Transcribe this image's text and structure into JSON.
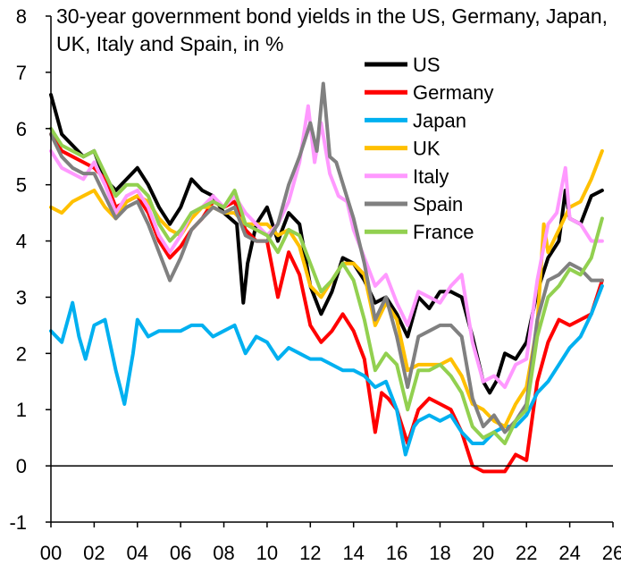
{
  "chart_data": {
    "type": "line",
    "title": "30-year government bond yields in the US, Germany, Japan, UK, Italy and Spain, in %",
    "xlabel": "",
    "ylabel": "",
    "xlim": [
      2000,
      2026
    ],
    "ylim": [
      -1,
      8
    ],
    "x_ticks": [
      0,
      2,
      4,
      6,
      8,
      10,
      12,
      14,
      16,
      18,
      20,
      22,
      24,
      26
    ],
    "x_tick_labels": [
      "00",
      "02",
      "04",
      "06",
      "08",
      "10",
      "12",
      "14",
      "16",
      "18",
      "20",
      "22",
      "24",
      "26"
    ],
    "y_ticks": [
      -1,
      0,
      1,
      2,
      3,
      4,
      5,
      6,
      7,
      8
    ],
    "grid": false,
    "legend_position": "top-right",
    "series": [
      {
        "name": "US",
        "color": "#000000",
        "x": [
          2000,
          2000.5,
          2001,
          2001.5,
          2002,
          2002.5,
          2003,
          2003.5,
          2004,
          2004.5,
          2005,
          2005.5,
          2006,
          2006.5,
          2007,
          2007.5,
          2008,
          2008.6,
          2008.9,
          2009.1,
          2009.5,
          2010,
          2010.5,
          2011,
          2011.5,
          2012,
          2012.5,
          2013,
          2013.5,
          2014,
          2014.5,
          2015,
          2015.5,
          2016,
          2016.5,
          2017,
          2017.5,
          2018,
          2018.5,
          2019,
          2019.5,
          2020,
          2020.3,
          2020.6,
          2021,
          2021.5,
          2022,
          2022.5,
          2023,
          2023.5,
          2023.8,
          2024,
          2024.5,
          2025,
          2025.5
        ],
        "y": [
          6.6,
          5.9,
          5.7,
          5.5,
          5.6,
          5.1,
          4.9,
          5.1,
          5.3,
          5.0,
          4.6,
          4.3,
          4.6,
          5.1,
          4.9,
          4.8,
          4.5,
          4.3,
          2.9,
          3.6,
          4.3,
          4.6,
          4.0,
          4.5,
          4.3,
          3.2,
          2.7,
          3.1,
          3.7,
          3.6,
          3.3,
          2.9,
          3.0,
          2.7,
          2.3,
          3.0,
          2.8,
          3.1,
          3.1,
          3.0,
          2.3,
          1.5,
          1.3,
          1.5,
          2.0,
          1.9,
          2.2,
          3.1,
          3.7,
          4.0,
          4.9,
          4.4,
          4.3,
          4.8,
          4.9
        ]
      },
      {
        "name": "Germany",
        "color": "#ff0000",
        "x": [
          2000,
          2000.5,
          2001,
          2001.5,
          2002,
          2002.5,
          2003,
          2003.5,
          2004,
          2004.5,
          2005,
          2005.5,
          2006,
          2006.5,
          2007,
          2007.5,
          2008,
          2008.5,
          2009,
          2009.5,
          2010,
          2010.5,
          2011,
          2011.5,
          2012,
          2012.5,
          2013,
          2013.5,
          2014,
          2014.5,
          2015,
          2015.3,
          2015.6,
          2016,
          2016.5,
          2017,
          2017.5,
          2018,
          2018.5,
          2019,
          2019.5,
          2020,
          2020.5,
          2021,
          2021.5,
          2022,
          2022.5,
          2023,
          2023.5,
          2024,
          2024.5,
          2025,
          2025.5
        ],
        "y": [
          5.9,
          5.6,
          5.5,
          5.4,
          5.3,
          5.1,
          4.6,
          4.7,
          4.8,
          4.5,
          4.0,
          3.7,
          3.9,
          4.2,
          4.4,
          4.7,
          4.6,
          4.7,
          4.2,
          4.0,
          4.0,
          3.0,
          3.8,
          3.4,
          2.5,
          2.2,
          2.4,
          2.7,
          2.4,
          1.9,
          0.6,
          1.3,
          1.2,
          1.0,
          0.4,
          1.0,
          1.2,
          1.1,
          1.0,
          0.6,
          0.0,
          -0.1,
          -0.1,
          -0.1,
          0.2,
          0.1,
          1.5,
          2.2,
          2.6,
          2.5,
          2.6,
          2.7,
          3.3
        ]
      },
      {
        "name": "Japan",
        "color": "#00b0f0",
        "x": [
          2000,
          2000.5,
          2001,
          2001.3,
          2001.6,
          2002,
          2002.5,
          2003,
          2003.4,
          2003.8,
          2004,
          2004.5,
          2005,
          2005.5,
          2006,
          2006.5,
          2007,
          2007.5,
          2008,
          2008.5,
          2009,
          2009.5,
          2010,
          2010.5,
          2011,
          2011.5,
          2012,
          2012.5,
          2013,
          2013.5,
          2014,
          2014.5,
          2015,
          2015.5,
          2016,
          2016.4,
          2016.8,
          2017,
          2017.5,
          2018,
          2018.5,
          2019,
          2019.5,
          2020,
          2020.5,
          2021,
          2021.5,
          2022,
          2022.5,
          2023,
          2023.5,
          2024,
          2024.5,
          2025,
          2025.5
        ],
        "y": [
          2.4,
          2.2,
          2.9,
          2.3,
          1.9,
          2.5,
          2.6,
          1.7,
          1.1,
          2.0,
          2.6,
          2.3,
          2.4,
          2.4,
          2.4,
          2.5,
          2.5,
          2.3,
          2.4,
          2.5,
          2.0,
          2.3,
          2.2,
          1.9,
          2.1,
          2.0,
          1.9,
          1.9,
          1.8,
          1.7,
          1.7,
          1.6,
          1.4,
          1.5,
          1.0,
          0.2,
          0.7,
          0.8,
          0.9,
          0.8,
          0.9,
          0.6,
          0.4,
          0.4,
          0.6,
          0.7,
          0.7,
          0.9,
          1.3,
          1.5,
          1.8,
          2.1,
          2.3,
          2.7,
          3.2
        ]
      },
      {
        "name": "UK",
        "color": "#ffc000",
        "x": [
          2000,
          2000.5,
          2001,
          2001.5,
          2002,
          2002.5,
          2003,
          2003.5,
          2004,
          2004.5,
          2005,
          2005.5,
          2006,
          2006.5,
          2007,
          2007.5,
          2008,
          2008.5,
          2009,
          2009.5,
          2010,
          2010.5,
          2011,
          2011.5,
          2012,
          2012.5,
          2013,
          2013.5,
          2014,
          2014.5,
          2015,
          2015.5,
          2016,
          2016.5,
          2017,
          2017.5,
          2018,
          2018.5,
          2019,
          2019.5,
          2020,
          2020.5,
          2021,
          2021.5,
          2022,
          2022.5,
          2022.8,
          2023,
          2023.5,
          2024,
          2024.5,
          2025,
          2025.5
        ],
        "y": [
          4.6,
          4.5,
          4.7,
          4.8,
          4.9,
          4.6,
          4.4,
          4.7,
          4.8,
          4.7,
          4.4,
          4.2,
          4.1,
          4.4,
          4.6,
          4.6,
          4.5,
          4.5,
          4.3,
          4.3,
          4.3,
          4.1,
          4.2,
          3.9,
          3.2,
          3.0,
          3.3,
          3.6,
          3.6,
          3.4,
          2.5,
          2.9,
          2.6,
          1.7,
          1.8,
          1.8,
          1.8,
          1.9,
          1.6,
          1.1,
          1.0,
          0.8,
          0.7,
          1.1,
          1.4,
          2.5,
          4.3,
          3.8,
          4.2,
          4.6,
          4.7,
          5.1,
          5.6
        ]
      },
      {
        "name": "Italy",
        "color": "#ff99ff",
        "x": [
          2000,
          2000.5,
          2001,
          2001.5,
          2002,
          2002.5,
          2003,
          2003.5,
          2004,
          2004.5,
          2005,
          2005.5,
          2006,
          2006.5,
          2007,
          2007.5,
          2008,
          2008.5,
          2009,
          2009.5,
          2010,
          2010.5,
          2011,
          2011.5,
          2011.9,
          2012.2,
          2012.5,
          2012.9,
          2013.3,
          2013.7,
          2014,
          2014.5,
          2015,
          2015.5,
          2016,
          2016.5,
          2017,
          2017.5,
          2018,
          2018.5,
          2019,
          2019.5,
          2020,
          2020.5,
          2021,
          2021.5,
          2022,
          2022.5,
          2023,
          2023.4,
          2023.8,
          2024,
          2024.5,
          2025,
          2025.5
        ],
        "y": [
          5.6,
          5.3,
          5.2,
          5.1,
          5.4,
          5.0,
          4.5,
          4.8,
          4.9,
          4.6,
          4.1,
          3.8,
          4.1,
          4.5,
          4.6,
          4.8,
          4.6,
          4.8,
          4.5,
          4.3,
          4.1,
          4.3,
          4.7,
          5.4,
          6.4,
          5.4,
          6.1,
          5.2,
          4.8,
          4.7,
          4.2,
          3.7,
          3.2,
          3.4,
          2.9,
          2.5,
          3.1,
          3.0,
          2.9,
          3.2,
          3.4,
          2.2,
          1.5,
          1.6,
          1.4,
          1.8,
          1.9,
          3.3,
          4.3,
          4.5,
          5.3,
          4.4,
          4.3,
          4.0,
          4.0
        ]
      },
      {
        "name": "Spain",
        "color": "#808080",
        "x": [
          2000,
          2000.5,
          2001,
          2001.5,
          2002,
          2002.5,
          2003,
          2003.5,
          2004,
          2004.5,
          2005,
          2005.5,
          2006,
          2006.5,
          2007,
          2007.5,
          2008,
          2008.5,
          2009,
          2009.5,
          2010,
          2010.5,
          2011,
          2011.5,
          2012,
          2012.3,
          2012.6,
          2012.9,
          2013.2,
          2013.6,
          2014,
          2014.5,
          2015,
          2015.5,
          2016,
          2016.5,
          2017,
          2017.5,
          2018,
          2018.5,
          2019,
          2019.5,
          2020,
          2020.5,
          2021,
          2021.5,
          2022,
          2022.5,
          2023,
          2023.5,
          2024,
          2024.5,
          2025,
          2025.5
        ],
        "y": [
          5.9,
          5.5,
          5.3,
          5.2,
          5.2,
          4.8,
          4.4,
          4.6,
          4.7,
          4.3,
          3.8,
          3.3,
          3.7,
          4.2,
          4.4,
          4.6,
          4.5,
          4.6,
          4.1,
          4.0,
          4.0,
          4.3,
          5.0,
          5.5,
          6.1,
          5.6,
          6.8,
          5.5,
          5.4,
          4.9,
          4.4,
          3.6,
          2.6,
          3.0,
          2.3,
          1.4,
          2.3,
          2.4,
          2.5,
          2.5,
          2.3,
          1.2,
          0.7,
          0.9,
          0.6,
          0.8,
          1.1,
          2.6,
          3.3,
          3.4,
          3.6,
          3.5,
          3.3,
          3.3
        ]
      },
      {
        "name": "France",
        "color": "#92d050",
        "x": [
          2000,
          2000.5,
          2001,
          2001.5,
          2002,
          2002.5,
          2003,
          2003.5,
          2004,
          2004.5,
          2005,
          2005.5,
          2006,
          2006.5,
          2007,
          2007.5,
          2008,
          2008.5,
          2009,
          2009.5,
          2010,
          2010.5,
          2011,
          2011.5,
          2012,
          2012.5,
          2013,
          2013.5,
          2014,
          2014.5,
          2015,
          2015.5,
          2016,
          2016.5,
          2017,
          2017.5,
          2018,
          2018.5,
          2019,
          2019.5,
          2020,
          2020.5,
          2021,
          2021.5,
          2022,
          2022.5,
          2023,
          2023.5,
          2024,
          2024.5,
          2025,
          2025.5
        ],
        "y": [
          6.0,
          5.7,
          5.6,
          5.5,
          5.6,
          5.2,
          4.8,
          5.0,
          5.0,
          4.8,
          4.3,
          4.0,
          4.2,
          4.5,
          4.6,
          4.7,
          4.6,
          4.9,
          4.3,
          4.2,
          4.1,
          3.8,
          4.2,
          4.1,
          3.6,
          3.1,
          3.3,
          3.6,
          3.3,
          2.6,
          1.7,
          2.0,
          1.8,
          1.0,
          1.7,
          1.7,
          1.8,
          1.6,
          1.3,
          0.7,
          0.5,
          0.6,
          0.4,
          0.8,
          1.0,
          2.3,
          3.0,
          3.2,
          3.5,
          3.4,
          3.7,
          4.4
        ]
      }
    ]
  }
}
